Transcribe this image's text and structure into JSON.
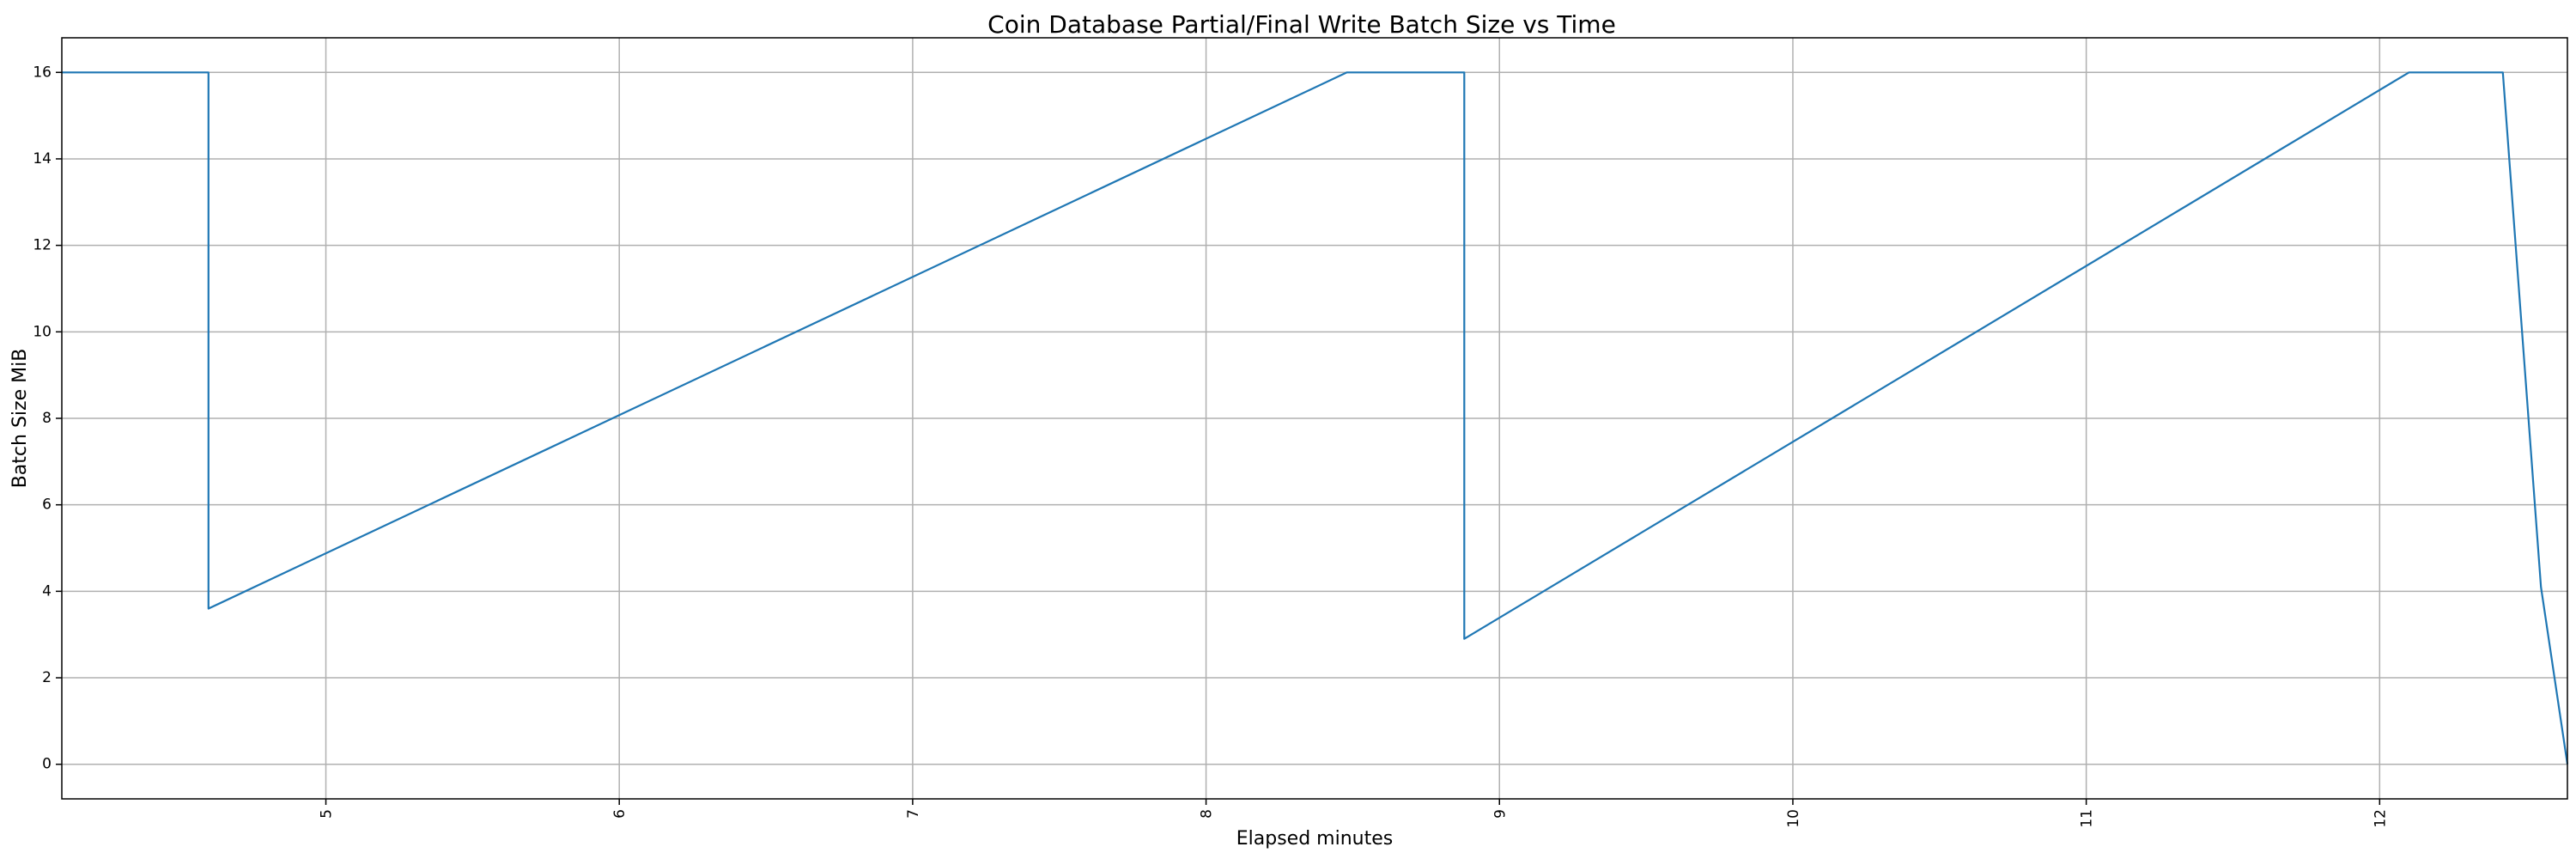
{
  "chart_data": {
    "type": "line",
    "title": "Coin Database Partial/Final Write Batch Size vs Time",
    "xlabel": "Elapsed minutes",
    "ylabel": "Batch Size MiB",
    "xlim": [
      4.1,
      12.64
    ],
    "ylim": [
      -0.8,
      16.8
    ],
    "x_ticks": [
      5,
      6,
      7,
      8,
      9,
      10,
      11,
      12
    ],
    "y_ticks": [
      0,
      2,
      4,
      6,
      8,
      10,
      12,
      14,
      16
    ],
    "x_tick_rotation": "vertical",
    "grid": true,
    "legend": "none",
    "series": [
      {
        "color": "#1f77b4",
        "x": [
          4.1,
          4.6,
          4.6,
          8.48,
          8.88,
          8.88,
          12.1,
          12.42,
          12.55,
          12.64
        ],
        "y": [
          16,
          16,
          3.6,
          16,
          16,
          2.9,
          16,
          16,
          4.1,
          0
        ]
      }
    ]
  }
}
